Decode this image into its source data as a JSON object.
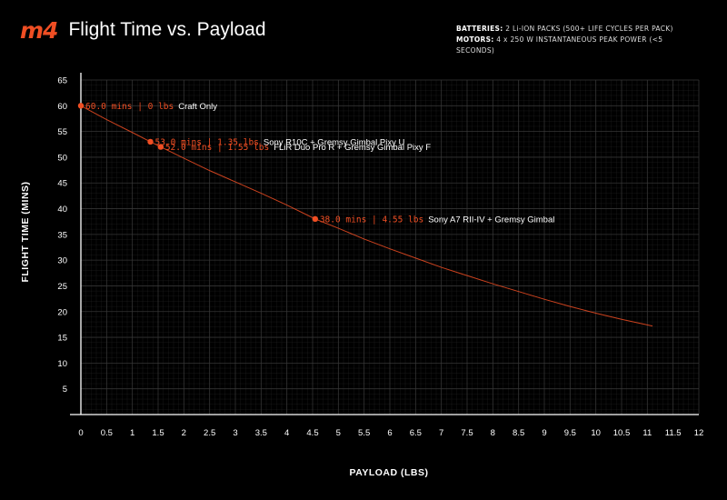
{
  "header": {
    "logo": "m4",
    "title": "Flight Time vs. Payload"
  },
  "specs": {
    "batteries_label": "BATTERIES:",
    "batteries_value": "2 Li-ION PACKS (500+ LIFE CYCLES PER PACK)",
    "motors_label": "MOTORS:",
    "motors_value": "4 x 250 W INSTANTANEOUS PEAK POWER (<5 SECONDS)"
  },
  "colors": {
    "accent": "#f04e23",
    "background": "#000000",
    "grid": "#3a3a3a",
    "text": "#ffffff"
  },
  "chart_data": {
    "type": "line",
    "title": "Flight Time vs. Payload",
    "xlabel": "PAYLOAD  (LBS)",
    "ylabel": "FLIGHT TIME  (MINS)",
    "xlim": [
      0,
      12
    ],
    "ylim": [
      0,
      65
    ],
    "x_ticks": [
      "0",
      "0.5",
      "1",
      "1.5",
      "2",
      "2.5",
      "3",
      "3.5",
      "4",
      "4.5",
      "5",
      "5.5",
      "6",
      "6.5",
      "7",
      "7.5",
      "8",
      "8.5",
      "9",
      "9.5",
      "10",
      "10.5",
      "11",
      "11.5",
      "12"
    ],
    "y_ticks": [
      "5",
      "10",
      "15",
      "20",
      "25",
      "30",
      "35",
      "40",
      "45",
      "50",
      "55",
      "60",
      "65"
    ],
    "grid": true,
    "series": [
      {
        "x": [
          0,
          0.5,
          1,
          1.35,
          1.55,
          2,
          2.5,
          3,
          3.5,
          4,
          4.55,
          5,
          5.5,
          6,
          6.5,
          7,
          7.5,
          8,
          8.5,
          9,
          9.5,
          10,
          10.5,
          11.1
        ],
        "values": [
          60,
          57.3,
          54.8,
          53,
          52,
          49.8,
          47.4,
          45.2,
          43,
          40.7,
          38,
          36.2,
          34.1,
          32.2,
          30.4,
          28.6,
          27,
          25.4,
          23.9,
          22.4,
          21,
          19.7,
          18.5,
          17.2
        ]
      }
    ],
    "annotations": [
      {
        "x": 0,
        "y": 60,
        "value_text": "60.0 mins | 0 lbs",
        "payload": "Craft Only"
      },
      {
        "x": 1.35,
        "y": 53,
        "value_text": "53.0 mins | 1.35 lbs",
        "payload": "Sony R10C  +  Gremsy Gimbal Pixy U"
      },
      {
        "x": 1.55,
        "y": 52,
        "value_text": "52.0 mins | 1.55 lbs",
        "payload": "FLiR Duo Pro R  +  Gremsy Gimbal Pixy F"
      },
      {
        "x": 4.55,
        "y": 38,
        "value_text": "38.0 mins | 4.55 lbs",
        "payload": "Sony A7 RII-IV  +  Gremsy Gimbal"
      }
    ]
  }
}
